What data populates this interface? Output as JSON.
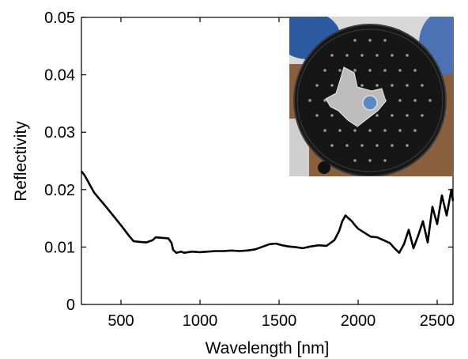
{
  "chart_data": {
    "type": "line",
    "title": "",
    "xlabel": "Wavelength [nm]",
    "ylabel": "Reflectivity",
    "xlim": [
      250,
      2600
    ],
    "ylim": [
      0,
      0.05
    ],
    "x_ticks": [
      500,
      1000,
      1500,
      2000,
      2500
    ],
    "x_tick_labels": [
      "500",
      "1000",
      "1500",
      "2000",
      "2500"
    ],
    "y_ticks": [
      0,
      0.01,
      0.02,
      0.03,
      0.04,
      0.05
    ],
    "y_tick_labels": [
      "0",
      "0.01",
      "0.02",
      "0.03",
      "0.04",
      "0.05"
    ],
    "grid": false,
    "legend": "none",
    "series": [
      {
        "color": "#000000",
        "x": [
          250,
          270,
          290,
          310,
          330,
          360,
          400,
          450,
          500,
          550,
          580,
          620,
          660,
          700,
          720,
          760,
          800,
          820,
          830,
          850,
          880,
          900,
          950,
          1000,
          1050,
          1100,
          1150,
          1200,
          1250,
          1300,
          1350,
          1400,
          1440,
          1480,
          1520,
          1560,
          1600,
          1650,
          1700,
          1750,
          1800,
          1850,
          1880,
          1900,
          1920,
          1940,
          1960,
          1980,
          2000,
          2040,
          2080,
          2120,
          2160,
          2200,
          2230,
          2260,
          2290,
          2320,
          2350,
          2380,
          2410,
          2440,
          2470,
          2500,
          2530,
          2560,
          2590,
          2600
        ],
        "y": [
          0.0232,
          0.0225,
          0.0215,
          0.0205,
          0.0195,
          0.0185,
          0.0172,
          0.0155,
          0.0138,
          0.012,
          0.011,
          0.0109,
          0.0108,
          0.0112,
          0.0117,
          0.0116,
          0.0115,
          0.0107,
          0.0095,
          0.009,
          0.0092,
          0.009,
          0.0092,
          0.0091,
          0.0092,
          0.0093,
          0.0093,
          0.0094,
          0.0093,
          0.0094,
          0.0096,
          0.0101,
          0.0105,
          0.0106,
          0.0103,
          0.0101,
          0.01,
          0.0098,
          0.0101,
          0.0103,
          0.0102,
          0.0112,
          0.0128,
          0.0145,
          0.0155,
          0.015,
          0.0145,
          0.0138,
          0.0132,
          0.0125,
          0.0118,
          0.0117,
          0.0112,
          0.0107,
          0.0098,
          0.009,
          0.0105,
          0.013,
          0.0098,
          0.012,
          0.0145,
          0.0108,
          0.017,
          0.014,
          0.019,
          0.0155,
          0.02,
          0.018
        ]
      }
    ]
  },
  "inset_photo": {
    "subject": "dark disc sample held in gloved hands",
    "colors": {
      "disc": "#161616",
      "table": "#8a5f3c",
      "glove": "#2b5aa0",
      "spot": "#cfcfcf"
    }
  }
}
